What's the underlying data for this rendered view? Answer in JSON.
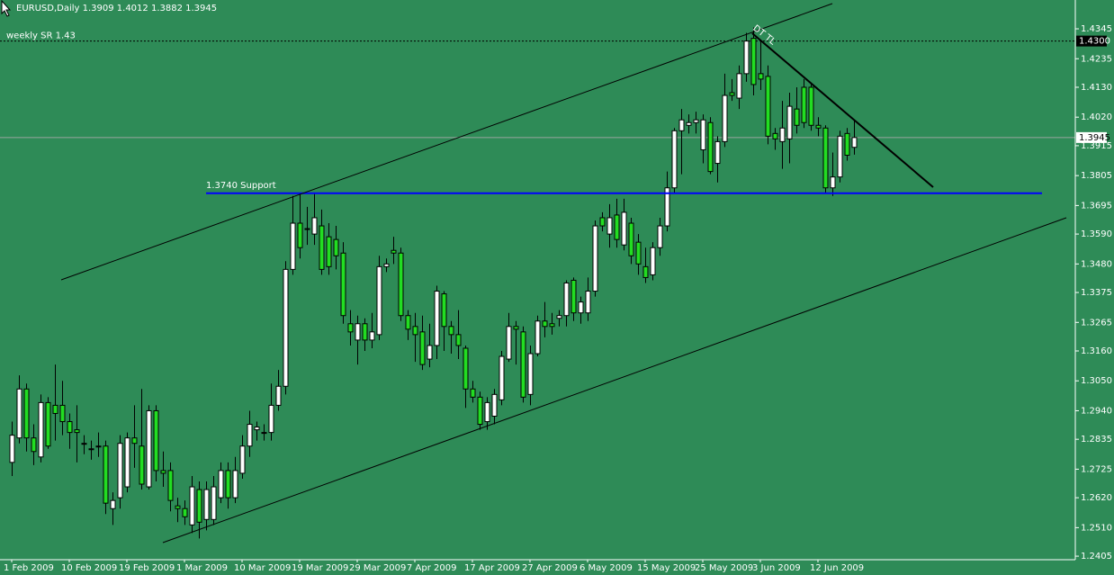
{
  "chart_data": {
    "type": "candlestick",
    "title": "EURUSD,Daily  1.3909 1.4012 1.3882 1.3945",
    "background": "#2e8b57",
    "up_color": "#ffffff",
    "down_color": "#22dd22",
    "categories": [
      "1 Feb 2009",
      null,
      null,
      null,
      null,
      null,
      null,
      null,
      "10 Feb 2009",
      null,
      null,
      null,
      null,
      null,
      null,
      null,
      "19 Feb 2009",
      null,
      null,
      null,
      null,
      null,
      null,
      null,
      "1 Mar 2009",
      null,
      null,
      null,
      null,
      null,
      null,
      null,
      "10 Mar 2009",
      null,
      null,
      null,
      null,
      null,
      null,
      null,
      "19 Mar 2009",
      null,
      null,
      null,
      null,
      null,
      null,
      null,
      "29 Mar 2009",
      null,
      null,
      null,
      null,
      null,
      null,
      null,
      "7 Apr 2009",
      null,
      null,
      null,
      null,
      null,
      null,
      null,
      "17 Apr 2009",
      null,
      null,
      null,
      null,
      null,
      null,
      null,
      "27 Apr 2009",
      null,
      null,
      null,
      null,
      null,
      null,
      null,
      "6 May 2009",
      null,
      null,
      null,
      null,
      null,
      null,
      null,
      "15 May 2009",
      null,
      null,
      null,
      null,
      null,
      null,
      null,
      "25 May 2009",
      null,
      null,
      null,
      null,
      null,
      null,
      null,
      "3 Jun 2009",
      null,
      null,
      null,
      null,
      null,
      null,
      null,
      "12 Jun 2009",
      null,
      null,
      null,
      null,
      null
    ],
    "open": [
      1.275,
      1.284,
      1.302,
      1.284,
      1.277,
      1.297,
      1.296,
      1.296,
      1.29,
      1.287,
      1.282,
      1.28,
      1.281,
      1.281,
      1.258,
      1.262,
      1.266,
      1.284,
      1.281,
      1.266,
      1.294,
      1.272,
      1.272,
      1.259,
      1.258,
      1.252,
      1.265,
      1.254,
      1.254,
      1.262,
      1.272,
      1.262,
      1.271,
      1.281,
      1.287,
      1.286,
      1.286,
      1.296,
      1.303,
      1.346,
      1.363,
      1.361,
      1.359,
      1.362,
      1.358,
      1.357,
      1.352,
      1.326,
      1.32,
      1.326,
      1.32,
      1.322,
      1.347,
      1.353,
      1.352,
      1.329,
      1.325,
      1.323,
      1.313,
      1.318,
      1.337,
      1.325,
      1.322,
      1.317,
      1.302,
      1.299,
      1.29,
      1.292,
      1.298,
      1.313,
      1.325,
      1.323,
      1.3,
      1.315,
      1.327,
      1.326,
      1.328,
      1.329,
      1.342,
      1.33,
      1.33,
      1.338,
      1.365,
      1.359,
      1.366,
      1.355,
      1.363,
      1.356,
      1.347,
      1.344,
      1.354,
      1.362,
      1.376,
      1.397,
      1.399,
      1.4,
      1.39,
      1.4,
      1.385,
      1.393,
      1.411,
      1.409,
      1.418,
      1.431,
      1.418,
      1.417,
      1.396,
      1.393,
      1.394,
      1.405,
      1.413,
      1.413,
      1.399,
      1.398,
      1.376,
      1.38,
      1.396,
      1.3909
    ],
    "high": [
      1.29,
      1.307,
      1.304,
      1.289,
      1.3,
      1.299,
      1.311,
      1.305,
      1.293,
      1.296,
      1.285,
      1.283,
      1.286,
      1.283,
      1.264,
      1.285,
      1.286,
      1.296,
      1.302,
      1.296,
      1.296,
      1.279,
      1.275,
      1.262,
      1.261,
      1.27,
      1.268,
      1.268,
      1.27,
      1.275,
      1.275,
      1.277,
      1.285,
      1.294,
      1.29,
      1.289,
      1.304,
      1.309,
      1.349,
      1.373,
      1.374,
      1.369,
      1.374,
      1.368,
      1.363,
      1.362,
      1.356,
      1.331,
      1.329,
      1.328,
      1.33,
      1.351,
      1.35,
      1.358,
      1.354,
      1.331,
      1.33,
      1.329,
      1.326,
      1.34,
      1.338,
      1.327,
      1.331,
      1.318,
      1.305,
      1.301,
      1.299,
      1.302,
      1.316,
      1.33,
      1.327,
      1.325,
      1.318,
      1.329,
      1.334,
      1.33,
      1.331,
      1.342,
      1.343,
      1.336,
      1.343,
      1.364,
      1.367,
      1.37,
      1.372,
      1.372,
      1.365,
      1.359,
      1.354,
      1.356,
      1.365,
      1.382,
      1.398,
      1.405,
      1.403,
      1.404,
      1.403,
      1.402,
      1.395,
      1.418,
      1.416,
      1.421,
      1.433,
      1.435,
      1.43,
      1.421,
      1.398,
      1.408,
      1.411,
      1.413,
      1.416,
      1.414,
      1.402,
      1.399,
      1.389,
      1.397,
      1.398,
      1.4012
    ],
    "low": [
      1.27,
      1.282,
      1.279,
      1.274,
      1.275,
      1.28,
      1.283,
      1.285,
      1.28,
      1.275,
      1.278,
      1.276,
      1.277,
      1.256,
      1.252,
      1.258,
      1.264,
      1.273,
      1.265,
      1.265,
      1.268,
      1.266,
      1.257,
      1.253,
      1.252,
      1.249,
      1.247,
      1.25,
      1.252,
      1.26,
      1.258,
      1.26,
      1.269,
      1.277,
      1.283,
      1.283,
      1.283,
      1.294,
      1.3,
      1.344,
      1.35,
      1.355,
      1.355,
      1.344,
      1.344,
      1.346,
      1.326,
      1.318,
      1.311,
      1.316,
      1.317,
      1.32,
      1.345,
      1.348,
      1.327,
      1.32,
      1.312,
      1.309,
      1.31,
      1.313,
      1.316,
      1.315,
      1.313,
      1.295,
      1.297,
      1.287,
      1.287,
      1.289,
      1.296,
      1.312,
      1.311,
      1.297,
      1.296,
      1.314,
      1.321,
      1.322,
      1.325,
      1.325,
      1.327,
      1.326,
      1.327,
      1.336,
      1.36,
      1.354,
      1.354,
      1.353,
      1.348,
      1.344,
      1.341,
      1.342,
      1.351,
      1.36,
      1.374,
      1.381,
      1.396,
      1.396,
      1.385,
      1.381,
      1.378,
      1.391,
      1.408,
      1.405,
      1.415,
      1.41,
      1.412,
      1.392,
      1.39,
      1.383,
      1.385,
      1.396,
      1.398,
      1.397,
      1.395,
      1.374,
      1.373,
      1.378,
      1.386,
      1.3882
    ],
    "close": [
      1.285,
      1.302,
      1.284,
      1.279,
      1.297,
      1.281,
      1.293,
      1.29,
      1.286,
      1.286,
      1.282,
      1.28,
      1.281,
      1.26,
      1.261,
      1.282,
      1.284,
      1.282,
      1.267,
      1.294,
      1.272,
      1.271,
      1.261,
      1.258,
      1.255,
      1.266,
      1.253,
      1.265,
      1.266,
      1.272,
      1.262,
      1.272,
      1.281,
      1.289,
      1.288,
      1.286,
      1.296,
      1.303,
      1.346,
      1.363,
      1.354,
      1.361,
      1.365,
      1.346,
      1.347,
      1.351,
      1.329,
      1.323,
      1.326,
      1.32,
      1.323,
      1.347,
      1.348,
      1.352,
      1.329,
      1.324,
      1.322,
      1.311,
      1.318,
      1.338,
      1.325,
      1.322,
      1.318,
      1.302,
      1.299,
      1.289,
      1.297,
      1.3,
      1.314,
      1.325,
      1.324,
      1.299,
      1.315,
      1.327,
      1.325,
      1.325,
      1.329,
      1.341,
      1.33,
      1.334,
      1.338,
      1.362,
      1.362,
      1.365,
      1.357,
      1.367,
      1.351,
      1.348,
      1.343,
      1.354,
      1.362,
      1.376,
      1.397,
      1.401,
      1.4,
      1.401,
      1.401,
      1.382,
      1.393,
      1.41,
      1.41,
      1.418,
      1.43,
      1.414,
      1.416,
      1.395,
      1.394,
      1.398,
      1.406,
      1.399,
      1.4,
      1.399,
      1.398,
      1.376,
      1.38,
      1.395,
      1.388,
      1.3945
    ],
    "ylim": [
      1.2392,
      1.4451
    ],
    "yticks": [
      1.4345,
      1.4235,
      {
        "value": 1.413,
        "label": "1.4130"
      },
      {
        "value": 1.402,
        "label": "1.4020"
      },
      1.3915,
      1.3805,
      1.3695,
      {
        "value": 1.359,
        "label": "1.3590"
      },
      {
        "value": 1.348,
        "label": "1.3480"
      },
      1.3375,
      1.3265,
      {
        "value": 1.316,
        "label": "1.3160"
      },
      {
        "value": 1.305,
        "label": "1.3050"
      },
      {
        "value": 1.294,
        "label": "1.2940"
      },
      1.2835,
      1.2725,
      {
        "value": 1.262,
        "label": "1.2620"
      },
      {
        "value": 1.251,
        "label": "1.2510"
      },
      1.2405
    ],
    "sr_level": {
      "value": 1.43,
      "label": "1.4300"
    },
    "sr_label": "weekly SR 1.43",
    "support_level": 1.374,
    "support_label": "1.3740 Support",
    "last_price": 1.3945,
    "trendline_label": "DT TL"
  }
}
